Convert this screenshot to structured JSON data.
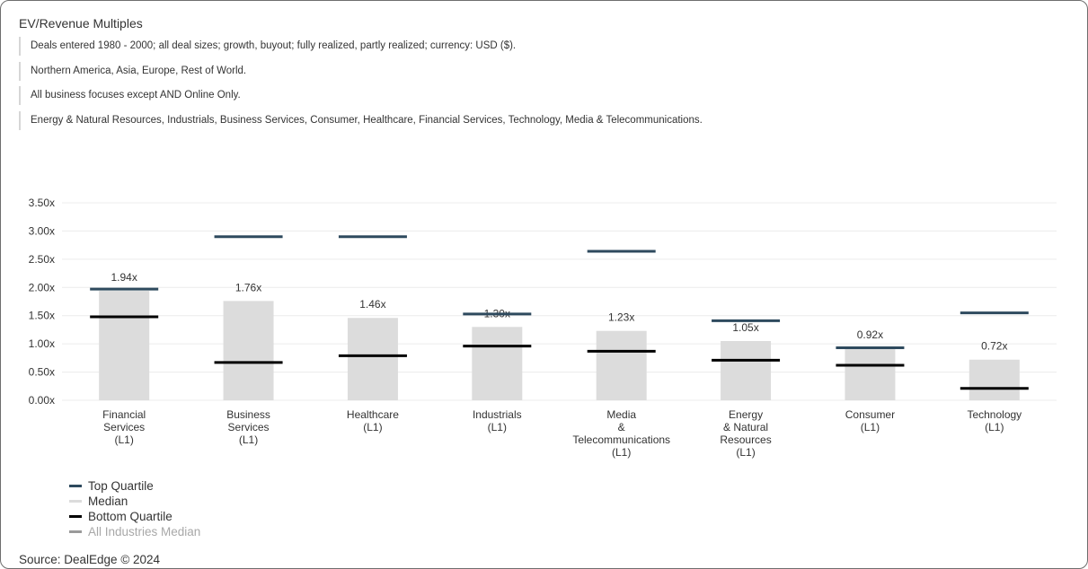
{
  "title": "EV/Revenue Multiples",
  "filters": [
    "Deals entered 1980 - 2000; all deal sizes; growth, buyout; fully realized, partly realized; currency: USD ($).",
    "Northern America, Asia, Europe, Rest of World.",
    "All business focuses except AND Online Only.",
    "Energy & Natural Resources, Industrials, Business Services, Consumer, Healthcare, Financial Services, Technology, Media & Telecommunications."
  ],
  "source": "Source: DealEdge © 2024",
  "colors": {
    "top_quartile": "#2e4a5e",
    "median": "#dcdcdc",
    "bottom_quartile": "#000000",
    "all_industries_median": "#9a9a9a",
    "gridline": "#ececec",
    "axis_text": "#333333",
    "legend_muted_text": "#a8a8a8"
  },
  "legend": [
    {
      "label": "Top Quartile",
      "key": "top_quartile",
      "muted": false
    },
    {
      "label": "Median",
      "key": "median",
      "muted": false
    },
    {
      "label": "Bottom Quartile",
      "key": "bottom_quartile",
      "muted": false
    },
    {
      "label": "All Industries Median",
      "key": "all_industries_median",
      "muted": true
    }
  ],
  "chart_data": {
    "type": "bar",
    "title": "",
    "xlabel": "",
    "ylabel": "",
    "ylim": [
      0,
      3.5
    ],
    "yticks": [
      "0.00x",
      "0.50x",
      "1.00x",
      "1.50x",
      "2.00x",
      "2.50x",
      "3.00x",
      "3.50x"
    ],
    "grid": true,
    "legend_position": "bottom-left",
    "categories": [
      [
        "Financial",
        "Services",
        "(L1)"
      ],
      [
        "Business",
        "Services",
        "(L1)"
      ],
      [
        "Healthcare",
        "(L1)"
      ],
      [
        "Industrials",
        "(L1)"
      ],
      [
        "Media",
        "&",
        "Telecommunications",
        "(L1)"
      ],
      [
        "Energy",
        "& Natural",
        "Resources",
        "(L1)"
      ],
      [
        "Consumer",
        "(L1)"
      ],
      [
        "Technology",
        "(L1)"
      ]
    ],
    "median_labels": [
      "1.94x",
      "1.76x",
      "1.46x",
      "1.30x",
      "1.23x",
      "1.05x",
      "0.92x",
      "0.72x"
    ],
    "series": [
      {
        "name": "Median",
        "type": "bar",
        "values": [
          1.94,
          1.76,
          1.46,
          1.3,
          1.23,
          1.05,
          0.92,
          0.72
        ]
      },
      {
        "name": "Top Quartile",
        "type": "marker",
        "values": [
          1.97,
          2.9,
          2.9,
          1.53,
          2.64,
          1.41,
          0.93,
          1.55
        ]
      },
      {
        "name": "Bottom Quartile",
        "type": "marker",
        "values": [
          1.48,
          0.67,
          0.79,
          0.96,
          0.87,
          0.71,
          0.62,
          0.21
        ]
      }
    ]
  }
}
